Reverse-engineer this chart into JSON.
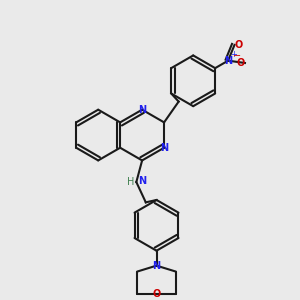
{
  "bg_color": "#eaeaea",
  "bond_color": "#1a1a1a",
  "n_color": "#2020ee",
  "o_color": "#cc0000",
  "h_color": "#408050",
  "line_width": 1.5,
  "dbo": 0.12,
  "fig_w": 3.0,
  "fig_h": 3.0,
  "dpi": 100,
  "xlim": [
    0,
    10
  ],
  "ylim": [
    0,
    10
  ],
  "r": 0.9
}
